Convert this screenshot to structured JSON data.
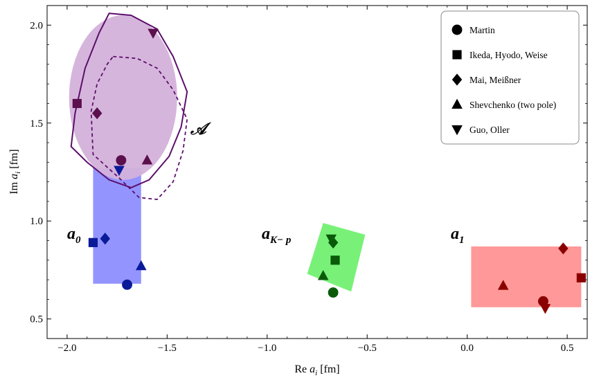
{
  "chart_data": {
    "type": "scatter",
    "xlabel": "Re a_i [fm]",
    "ylabel": "Im a_i [fm]",
    "xlim": [
      -2.1,
      0.6
    ],
    "ylim": [
      0.4,
      2.1
    ],
    "xticks": [
      -2.0,
      -1.5,
      -1.0,
      -0.5,
      0.0,
      0.5
    ],
    "xtick_labels": [
      "−2.0",
      "−1.5",
      "−1.0",
      "−0.5",
      "0.0",
      "0.5"
    ],
    "yticks": [
      0.5,
      1.0,
      1.5,
      2.0
    ],
    "ytick_labels": [
      "0.5",
      "1.0",
      "1.5",
      "2.0"
    ],
    "legend_position": "top-right",
    "region_labels": {
      "a0": {
        "main": "a",
        "sub": "0"
      },
      "aKp": {
        "main": "a",
        "sub": "K− p"
      },
      "a1": {
        "main": "a",
        "sub": "1"
      },
      "A": "𝒜"
    },
    "regions": [
      {
        "id": "a0",
        "color": "#6868ff",
        "x": [
          -1.87,
          -1.63
        ],
        "y": [
          0.68,
          1.27
        ]
      },
      {
        "id": "aKp",
        "color": "#22ee22",
        "corners": [
          [
            -0.8,
            0.73
          ],
          [
            -0.72,
            0.99
          ],
          [
            -0.51,
            0.93
          ],
          [
            -0.58,
            0.64
          ]
        ]
      },
      {
        "id": "a1",
        "color": "#ff7070",
        "x": [
          0.02,
          0.57
        ],
        "y": [
          0.56,
          0.87
        ]
      },
      {
        "id": "A",
        "color": "#c89bd2",
        "center": [
          -1.72,
          1.63
        ],
        "rx": 0.27,
        "ry": 0.42
      }
    ],
    "contour_solid": [
      [
        -1.79,
        2.06
      ],
      [
        -1.68,
        2.05
      ],
      [
        -1.55,
        1.98
      ],
      [
        -1.47,
        1.84
      ],
      [
        -1.4,
        1.66
      ],
      [
        -1.43,
        1.48
      ],
      [
        -1.49,
        1.33
      ],
      [
        -1.59,
        1.21
      ],
      [
        -1.68,
        1.17
      ],
      [
        -1.79,
        1.21
      ],
      [
        -1.9,
        1.3
      ],
      [
        -1.98,
        1.38
      ],
      [
        -1.96,
        1.55
      ],
      [
        -1.91,
        1.78
      ],
      [
        -1.84,
        1.96
      ],
      [
        -1.79,
        2.06
      ]
    ],
    "contour_dashed": [
      [
        -1.77,
        1.84
      ],
      [
        -1.65,
        1.83
      ],
      [
        -1.55,
        1.78
      ],
      [
        -1.47,
        1.67
      ],
      [
        -1.4,
        1.52
      ],
      [
        -1.42,
        1.36
      ],
      [
        -1.47,
        1.2
      ],
      [
        -1.55,
        1.11
      ],
      [
        -1.64,
        1.12
      ],
      [
        -1.74,
        1.22
      ],
      [
        -1.87,
        1.34
      ],
      [
        -1.88,
        1.56
      ],
      [
        -1.85,
        1.7
      ],
      [
        -1.8,
        1.8
      ],
      [
        -1.77,
        1.84
      ]
    ],
    "contour_color": "#5b0f6b",
    "series": [
      {
        "name": "Martin",
        "marker": "circle",
        "points": [
          {
            "x": -1.73,
            "y": 1.31,
            "color": "#5b0f4d"
          },
          {
            "x": -1.7,
            "y": 0.675,
            "color": "#0a1a99"
          },
          {
            "x": -0.67,
            "y": 0.635,
            "color": "#0a5a0a"
          },
          {
            "x": 0.38,
            "y": 0.59,
            "color": "#8a0000"
          }
        ]
      },
      {
        "name": "Ikeda, Hyodo, Weise",
        "marker": "square",
        "points": [
          {
            "x": -1.95,
            "y": 1.6,
            "color": "#5b0f4d"
          },
          {
            "x": -1.87,
            "y": 0.89,
            "color": "#0a1a99"
          },
          {
            "x": -0.66,
            "y": 0.8,
            "color": "#0a5a0a"
          },
          {
            "x": 0.57,
            "y": 0.71,
            "color": "#8a0000"
          }
        ]
      },
      {
        "name": "Mai, Meißner",
        "marker": "diamond",
        "points": [
          {
            "x": -1.85,
            "y": 1.55,
            "color": "#5b0f4d"
          },
          {
            "x": -1.81,
            "y": 0.91,
            "color": "#0a1a99"
          },
          {
            "x": -0.67,
            "y": 0.89,
            "color": "#0a5a0a"
          },
          {
            "x": 0.48,
            "y": 0.86,
            "color": "#8a0000"
          }
        ]
      },
      {
        "name": "Shevchenko (two pole)",
        "marker": "triangle-up",
        "points": [
          {
            "x": -1.6,
            "y": 1.31,
            "color": "#5b0f4d"
          },
          {
            "x": -1.63,
            "y": 0.77,
            "color": "#0a1a99"
          },
          {
            "x": -0.72,
            "y": 0.72,
            "color": "#0a5a0a"
          },
          {
            "x": 0.18,
            "y": 0.67,
            "color": "#8a0000"
          }
        ]
      },
      {
        "name": "Guo, Oller",
        "marker": "triangle-down",
        "points": [
          {
            "x": -1.57,
            "y": 1.96,
            "color": "#5b0f4d"
          },
          {
            "x": -1.74,
            "y": 1.26,
            "color": "#0a1a99"
          },
          {
            "x": -0.68,
            "y": 0.91,
            "color": "#0a5a0a"
          },
          {
            "x": 0.39,
            "y": 0.555,
            "color": "#8a0000"
          }
        ]
      }
    ]
  }
}
